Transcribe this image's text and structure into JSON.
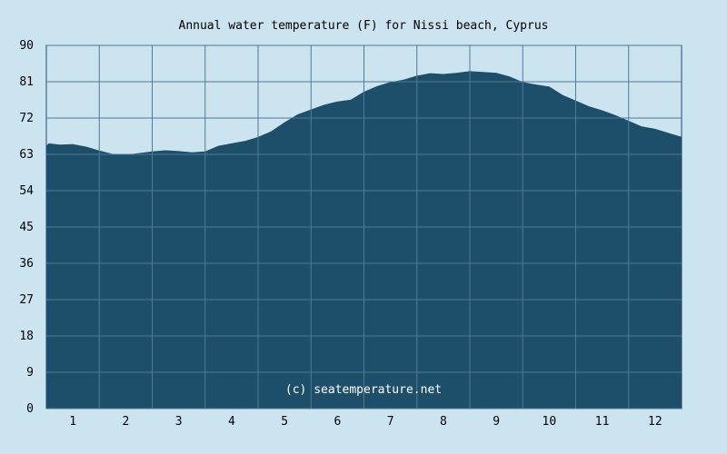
{
  "chart_data": {
    "type": "area",
    "title": "Annual water temperature (F) for Nissi beach, Cyprus",
    "credit": "(c) seatemperature.net",
    "xlabel": "",
    "ylabel": "",
    "xlim": [
      0.5,
      12.5
    ],
    "ylim": [
      0,
      90
    ],
    "grid": true,
    "x_ticks": [
      1,
      2,
      3,
      4,
      5,
      6,
      7,
      8,
      9,
      10,
      11,
      12
    ],
    "y_ticks": [
      0,
      9,
      18,
      27,
      36,
      45,
      54,
      63,
      72,
      81,
      90
    ],
    "x": [
      0.5,
      0.55,
      0.75,
      1.0,
      1.25,
      1.5,
      1.75,
      2.0,
      2.25,
      2.5,
      2.75,
      3.0,
      3.25,
      3.5,
      3.75,
      4.0,
      4.25,
      4.5,
      4.75,
      5.0,
      5.25,
      5.5,
      5.75,
      6.0,
      6.25,
      6.5,
      6.75,
      7.0,
      7.25,
      7.5,
      7.75,
      8.0,
      8.25,
      8.5,
      8.75,
      9.0,
      9.25,
      9.5,
      9.75,
      10.0,
      10.25,
      10.5,
      10.75,
      11.0,
      11.25,
      11.5,
      11.75,
      12.0,
      12.25,
      12.5
    ],
    "values": [
      65.0,
      65.6,
      65.3,
      65.4,
      64.8,
      63.8,
      63.0,
      62.8,
      63.2,
      63.6,
      63.9,
      63.7,
      63.4,
      63.6,
      65.0,
      65.6,
      66.2,
      67.2,
      68.6,
      70.8,
      72.8,
      74.0,
      75.2,
      76.0,
      76.4,
      78.4,
      79.8,
      80.8,
      81.4,
      82.4,
      83.0,
      82.8,
      83.1,
      83.5,
      83.3,
      83.1,
      82.2,
      80.8,
      80.2,
      79.7,
      77.6,
      76.2,
      74.8,
      73.8,
      72.6,
      71.2,
      69.8,
      69.2,
      68.2,
      67.2
    ]
  }
}
